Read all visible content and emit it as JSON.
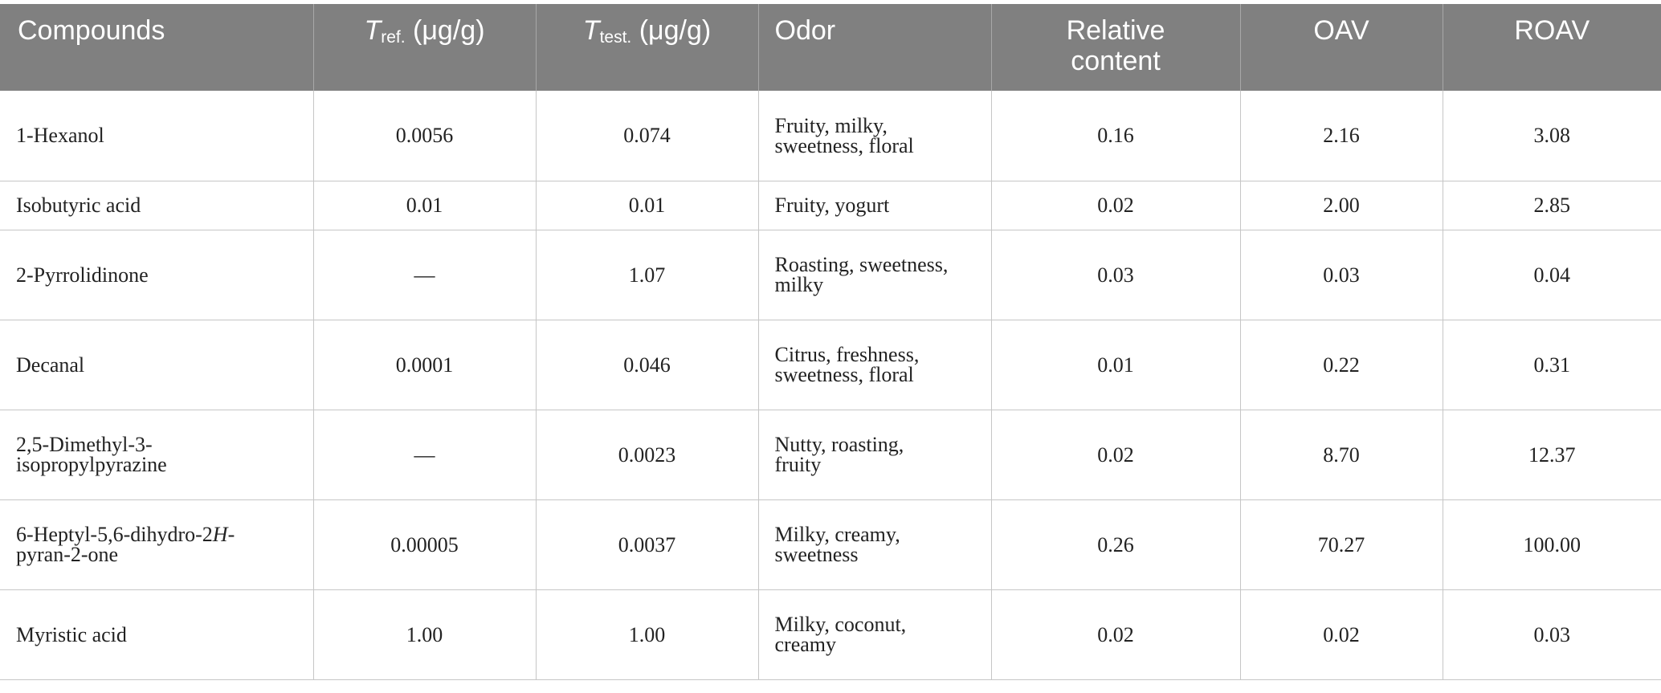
{
  "table": {
    "headers": {
      "compounds": "Compounds",
      "t_ref_symbol": "T",
      "t_ref_sub": "ref.",
      "t_ref_unit": " (μg/g)",
      "t_test_symbol": "T",
      "t_test_sub": "test.",
      "t_test_unit": " (μg/g)",
      "odor": "Odor",
      "relative_content_line1": "Relative",
      "relative_content_line2": "content",
      "oav": "OAV",
      "roav": "ROAV"
    },
    "rows": [
      {
        "compound": "1-Hexanol",
        "t_ref": "0.0056",
        "t_test": "0.074",
        "odor_line1": "Fruity, milky,",
        "odor_line2": "sweetness, floral",
        "relative_content": "0.16",
        "oav": "2.16",
        "roav": "3.08"
      },
      {
        "compound": "Isobutyric acid",
        "t_ref": "0.01",
        "t_test": "0.01",
        "odor_line1": "Fruity, yogurt",
        "relative_content": "0.02",
        "oav": "2.00",
        "roav": "2.85"
      },
      {
        "compound": "2-Pyrrolidinone",
        "t_ref": "—",
        "t_test": "1.07",
        "odor_line1": "Roasting, sweetness,",
        "odor_line2": "milky",
        "relative_content": "0.03",
        "oav": "0.03",
        "roav": "0.04"
      },
      {
        "compound": "Decanal",
        "t_ref": "0.0001",
        "t_test": "0.046",
        "odor_line1": "Citrus, freshness,",
        "odor_line2": "sweetness, floral",
        "relative_content": "0.01",
        "oav": "0.22",
        "roav": "0.31"
      },
      {
        "compound_line1": "2,5-Dimethyl-3-",
        "compound_line2": "isopropylpyrazine",
        "t_ref": "—",
        "t_test": "0.0023",
        "odor_line1": "Nutty, roasting,",
        "odor_line2": "fruity",
        "relative_content": "0.02",
        "oav": "8.70",
        "roav": "12.37"
      },
      {
        "compound_line1_a": "6-Heptyl-5,6-dihydro-2",
        "compound_line1_italic": "H",
        "compound_line1_b": "-",
        "compound_line2": "pyran-2-one",
        "t_ref": "0.00005",
        "t_test": "0.0037",
        "odor_line1": "Milky, creamy,",
        "odor_line2": "sweetness",
        "relative_content": "0.26",
        "oav": "70.27",
        "roav": "100.00"
      },
      {
        "compound": "Myristic acid",
        "t_ref": "1.00",
        "t_test": "1.00",
        "odor_line1": "Milky, coconut,",
        "odor_line2": "creamy",
        "relative_content": "0.02",
        "oav": "0.02",
        "roav": "0.03"
      }
    ]
  }
}
